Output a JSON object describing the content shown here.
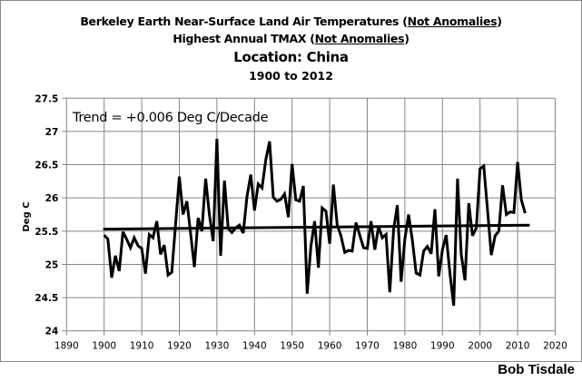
{
  "chart_data": {
    "type": "line",
    "title_lines": [
      {
        "parts": [
          {
            "text": "Berkeley Earth Near-Surface Land Air Temperatures (",
            "u": false
          },
          {
            "text": "Not Anomalies",
            "u": true
          },
          {
            "text": ")",
            "u": false
          }
        ]
      },
      {
        "parts": [
          {
            "text": "Highest Annual TMAX (",
            "u": false
          },
          {
            "text": "Not Anomalies",
            "u": true
          },
          {
            "text": ")",
            "u": false
          }
        ]
      },
      {
        "parts": [
          {
            "text": "Location: China",
            "u": false
          }
        ]
      },
      {
        "parts": [
          {
            "text": "1900 to 2012",
            "u": false
          }
        ]
      }
    ],
    "annotation": "Trend = +0.006 Deg C/Decade",
    "xlabel": "",
    "ylabel": "Deg C",
    "xlim": [
      1890,
      2020
    ],
    "ylim": [
      24,
      27.5
    ],
    "xticks": [
      1890,
      1900,
      1910,
      1920,
      1930,
      1940,
      1950,
      1960,
      1970,
      1980,
      1990,
      2000,
      2010,
      2020
    ],
    "yticks": [
      24,
      24.5,
      25,
      25.5,
      26,
      26.5,
      27,
      27.5
    ],
    "ytick_labels": [
      "24",
      "24.5",
      "25",
      "25.5",
      "26",
      "26.5",
      "27",
      "27.5"
    ],
    "grid": true,
    "legend": "none",
    "series": [
      {
        "name": "Highest Annual TMAX",
        "color": "#000000",
        "x_start": 1900,
        "values": [
          25.44,
          25.38,
          24.8,
          25.13,
          24.9,
          25.49,
          25.38,
          25.25,
          25.4,
          25.28,
          25.24,
          24.86,
          25.45,
          25.4,
          25.65,
          25.15,
          25.29,
          24.84,
          24.88,
          25.61,
          26.32,
          25.75,
          25.95,
          25.47,
          24.96,
          25.7,
          25.5,
          26.29,
          25.75,
          25.35,
          26.89,
          25.13,
          26.26,
          25.54,
          25.48,
          25.55,
          25.59,
          25.47,
          26.02,
          26.35,
          25.81,
          26.21,
          26.15,
          26.57,
          26.85,
          26.01,
          25.95,
          25.98,
          26.06,
          25.71,
          26.51,
          25.97,
          25.95,
          26.18,
          24.56,
          25.27,
          25.65,
          24.95,
          25.85,
          25.8,
          25.31,
          26.2,
          25.59,
          25.43,
          25.18,
          25.21,
          25.2,
          25.63,
          25.44,
          25.25,
          25.24,
          25.65,
          25.22,
          25.57,
          25.4,
          25.45,
          24.58,
          25.52,
          25.89,
          24.74,
          25.38,
          25.75,
          25.36,
          24.87,
          24.84,
          25.2,
          25.27,
          25.16,
          25.83,
          24.82,
          25.22,
          25.44,
          24.86,
          24.38,
          26.29,
          25.15,
          24.76,
          25.92,
          25.43,
          25.55,
          26.44,
          26.48,
          25.81,
          25.14,
          25.43,
          25.5,
          26.19,
          25.75,
          25.79,
          25.78,
          26.54,
          25.97,
          25.77
        ]
      },
      {
        "name": "Linear trend",
        "color": "#000000",
        "x": [
          1900,
          2012
        ],
        "values": [
          25.53,
          25.59
        ]
      }
    ]
  },
  "credit": "Bob Tisdale",
  "colors": {
    "grid": "#868686",
    "line": "#000000",
    "frame": "#868686"
  }
}
